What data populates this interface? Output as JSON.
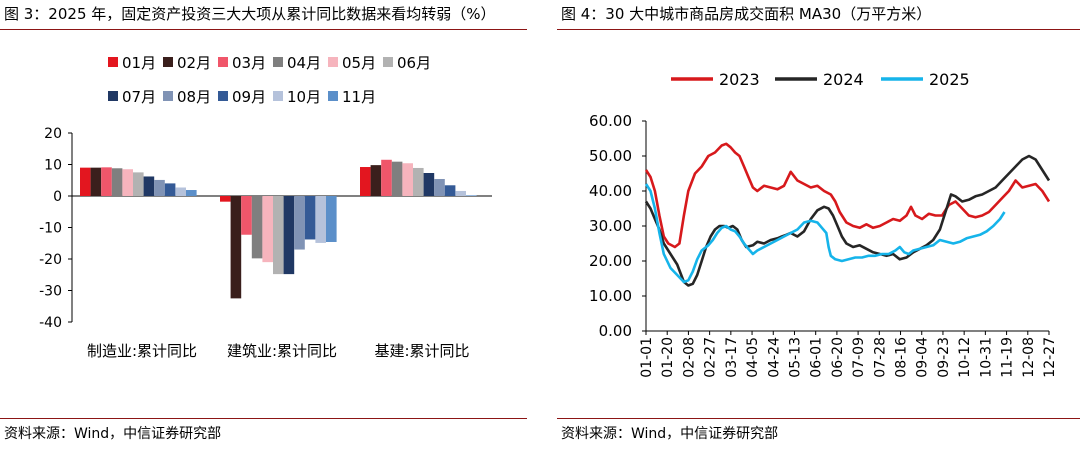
{
  "left_panel": {
    "title": "图 3：2025 年，固定资产投资三大大项从累计同比数据来看均转弱（%）",
    "source": "资料来源：Wind，中信证券研究部"
  },
  "right_panel": {
    "title": "图 4：30 大中城市商品房成交面积 MA30（万平方米）",
    "source": "资料来源：Wind，中信证券研究部"
  },
  "chart_data": [
    {
      "type": "bar",
      "title": "图 3：2025 年，固定资产投资三大大项从累计同比数据来看均转弱（%）",
      "categories": [
        "制造业:累计同比",
        "建筑业:累计同比",
        "基建:累计同比"
      ],
      "series": [
        {
          "name": "01月",
          "color": "#e3161f",
          "values": [
            9.0,
            -1.8,
            9.2
          ]
        },
        {
          "name": "02月",
          "color": "#3a1f1c",
          "values": [
            9.0,
            -32.5,
            9.8
          ]
        },
        {
          "name": "03月",
          "color": "#f0566a",
          "values": [
            9.1,
            -12.3,
            11.5
          ]
        },
        {
          "name": "04月",
          "color": "#7f7f7f",
          "values": [
            8.8,
            -19.8,
            10.9
          ]
        },
        {
          "name": "05月",
          "color": "#f6b4bd",
          "values": [
            8.5,
            -21.0,
            10.4
          ]
        },
        {
          "name": "06月",
          "color": "#b2b2b2",
          "values": [
            7.5,
            -24.8,
            8.9
          ]
        },
        {
          "name": "07月",
          "color": "#203864",
          "values": [
            6.2,
            -24.8,
            7.3
          ]
        },
        {
          "name": "08月",
          "color": "#8093b5",
          "values": [
            5.1,
            -17.0,
            5.4
          ]
        },
        {
          "name": "09月",
          "color": "#345a96",
          "values": [
            4.0,
            -13.8,
            3.4
          ]
        },
        {
          "name": "10月",
          "color": "#b5c2db",
          "values": [
            2.7,
            -14.9,
            1.6
          ]
        },
        {
          "name": "11月",
          "color": "#5b8fc9",
          "values": [
            1.9,
            -14.6,
            0.2
          ]
        }
      ],
      "ylim": [
        -40,
        20
      ],
      "yticks": [
        "20",
        "10",
        "0",
        "-10",
        "-20",
        "-30",
        "-40"
      ],
      "legend_position": "top"
    },
    {
      "type": "line",
      "title": "图 4：30 大中城市商品房成交面积 MA30（万平方米）",
      "x_ticks": [
        "01-01",
        "01-20",
        "02-08",
        "02-27",
        "03-17",
        "04-05",
        "04-24",
        "05-13",
        "06-01",
        "06-20",
        "07-09",
        "07-28",
        "08-16",
        "09-04",
        "09-23",
        "10-12",
        "10-31",
        "11-19",
        "12-08",
        "12-27"
      ],
      "ylim": [
        0,
        60
      ],
      "yticks": [
        "60.00",
        "50.00",
        "40.00",
        "30.00",
        "20.00",
        "10.00",
        "0.00"
      ],
      "x_range_days": [
        0,
        362
      ],
      "legend_position": "top",
      "series": [
        {
          "name": "2023",
          "color": "#d7191c",
          "width": 2.6,
          "points": [
            [
              0,
              46
            ],
            [
              4,
              44
            ],
            [
              8,
              40
            ],
            [
              12,
              33
            ],
            [
              16,
              27
            ],
            [
              20,
              25
            ],
            [
              26,
              24
            ],
            [
              30,
              25
            ],
            [
              34,
              33
            ],
            [
              38,
              40
            ],
            [
              44,
              45
            ],
            [
              50,
              47
            ],
            [
              56,
              50
            ],
            [
              62,
              51
            ],
            [
              68,
              53
            ],
            [
              72,
              53.5
            ],
            [
              76,
              52.5
            ],
            [
              80,
              51
            ],
            [
              84,
              50
            ],
            [
              88,
              47
            ],
            [
              92,
              44
            ],
            [
              96,
              41
            ],
            [
              100,
              40
            ],
            [
              106,
              41.5
            ],
            [
              112,
              41
            ],
            [
              118,
              40.5
            ],
            [
              124,
              41.5
            ],
            [
              130,
              45.5
            ],
            [
              136,
              43
            ],
            [
              142,
              42
            ],
            [
              148,
              41
            ],
            [
              154,
              41.5
            ],
            [
              160,
              40
            ],
            [
              166,
              39
            ],
            [
              170,
              37
            ],
            [
              174,
              34
            ],
            [
              180,
              31
            ],
            [
              186,
              30
            ],
            [
              192,
              29.5
            ],
            [
              198,
              30.5
            ],
            [
              204,
              29.5
            ],
            [
              210,
              30
            ],
            [
              216,
              31
            ],
            [
              222,
              32
            ],
            [
              228,
              31.5
            ],
            [
              234,
              33
            ],
            [
              238,
              35.5
            ],
            [
              242,
              33
            ],
            [
              248,
              32
            ],
            [
              254,
              33.5
            ],
            [
              260,
              33
            ],
            [
              266,
              33
            ],
            [
              272,
              36
            ],
            [
              278,
              37
            ],
            [
              284,
              35
            ],
            [
              290,
              33
            ],
            [
              296,
              32.5
            ],
            [
              302,
              33
            ],
            [
              308,
              34
            ],
            [
              314,
              36
            ],
            [
              320,
              38
            ],
            [
              326,
              40
            ],
            [
              332,
              43
            ],
            [
              338,
              41
            ],
            [
              344,
              41.5
            ],
            [
              350,
              42
            ],
            [
              356,
              40
            ],
            [
              362,
              37
            ]
          ]
        },
        {
          "name": "2024",
          "color": "#262626",
          "width": 2.6,
          "points": [
            [
              0,
              37
            ],
            [
              4,
              35
            ],
            [
              8,
              32
            ],
            [
              12,
              29
            ],
            [
              16,
              25
            ],
            [
              22,
              22
            ],
            [
              28,
              19
            ],
            [
              34,
              14
            ],
            [
              38,
              13
            ],
            [
              42,
              13.5
            ],
            [
              46,
              16
            ],
            [
              50,
              20
            ],
            [
              54,
              24
            ],
            [
              58,
              27
            ],
            [
              62,
              29
            ],
            [
              66,
              30
            ],
            [
              70,
              30
            ],
            [
              74,
              29.5
            ],
            [
              78,
              30
            ],
            [
              82,
              29
            ],
            [
              86,
              26
            ],
            [
              90,
              24
            ],
            [
              96,
              24.5
            ],
            [
              100,
              25.5
            ],
            [
              106,
              25
            ],
            [
              112,
              26
            ],
            [
              118,
              26.5
            ],
            [
              122,
              27
            ],
            [
              126,
              27.5
            ],
            [
              130,
              28
            ],
            [
              136,
              27
            ],
            [
              142,
              28.5
            ],
            [
              148,
              32
            ],
            [
              154,
              34.5
            ],
            [
              160,
              35.5
            ],
            [
              164,
              35
            ],
            [
              168,
              33
            ],
            [
              172,
              30
            ],
            [
              176,
              27
            ],
            [
              180,
              25
            ],
            [
              186,
              24
            ],
            [
              192,
              24.5
            ],
            [
              198,
              23.5
            ],
            [
              204,
              22.5
            ],
            [
              210,
              22
            ],
            [
              216,
              21.5
            ],
            [
              222,
              22
            ],
            [
              228,
              20.5
            ],
            [
              234,
              21
            ],
            [
              240,
              22.5
            ],
            [
              246,
              23.5
            ],
            [
              252,
              24.5
            ],
            [
              258,
              26
            ],
            [
              264,
              29
            ],
            [
              270,
              35
            ],
            [
              274,
              39
            ],
            [
              278,
              38.5
            ],
            [
              284,
              37
            ],
            [
              290,
              37.5
            ],
            [
              296,
              38.5
            ],
            [
              302,
              39
            ],
            [
              308,
              40
            ],
            [
              314,
              41
            ],
            [
              320,
              43
            ],
            [
              326,
              45
            ],
            [
              332,
              47
            ],
            [
              338,
              49
            ],
            [
              344,
              50
            ],
            [
              350,
              49
            ],
            [
              356,
              46
            ],
            [
              362,
              43
            ]
          ]
        },
        {
          "name": "2025",
          "color": "#16b4ea",
          "width": 2.6,
          "points": [
            [
              0,
              42
            ],
            [
              4,
              40
            ],
            [
              8,
              35
            ],
            [
              12,
              28
            ],
            [
              16,
              22
            ],
            [
              22,
              18
            ],
            [
              28,
              16
            ],
            [
              34,
              14
            ],
            [
              38,
              14.5
            ],
            [
              42,
              17
            ],
            [
              46,
              20.5
            ],
            [
              50,
              23
            ],
            [
              56,
              24.5
            ],
            [
              60,
              26
            ],
            [
              64,
              28
            ],
            [
              68,
              29.5
            ],
            [
              72,
              30
            ],
            [
              76,
              29
            ],
            [
              80,
              28.5
            ],
            [
              84,
              27
            ],
            [
              88,
              25
            ],
            [
              92,
              23.5
            ],
            [
              96,
              22
            ],
            [
              100,
              23
            ],
            [
              106,
              24
            ],
            [
              112,
              25
            ],
            [
              118,
              26
            ],
            [
              124,
              27
            ],
            [
              130,
              28
            ],
            [
              136,
              29
            ],
            [
              142,
              31
            ],
            [
              148,
              31.5
            ],
            [
              154,
              31
            ],
            [
              158,
              29.5
            ],
            [
              162,
              28
            ],
            [
              164,
              24
            ],
            [
              166,
              21.5
            ],
            [
              170,
              20.5
            ],
            [
              176,
              20
            ],
            [
              182,
              20.5
            ],
            [
              188,
              21
            ],
            [
              194,
              21
            ],
            [
              200,
              21.5
            ],
            [
              206,
              21.5
            ],
            [
              212,
              22
            ],
            [
              218,
              22
            ],
            [
              224,
              23
            ],
            [
              228,
              24
            ],
            [
              232,
              22.5
            ],
            [
              236,
              22
            ],
            [
              240,
              23
            ],
            [
              246,
              23.5
            ],
            [
              252,
              24
            ],
            [
              258,
              24.5
            ],
            [
              264,
              26
            ],
            [
              270,
              25.5
            ],
            [
              276,
              25
            ],
            [
              282,
              25.5
            ],
            [
              288,
              26.5
            ],
            [
              294,
              27
            ],
            [
              300,
              27.5
            ],
            [
              306,
              28.5
            ],
            [
              312,
              30
            ],
            [
              318,
              32
            ],
            [
              322,
              34
            ]
          ]
        }
      ]
    }
  ]
}
